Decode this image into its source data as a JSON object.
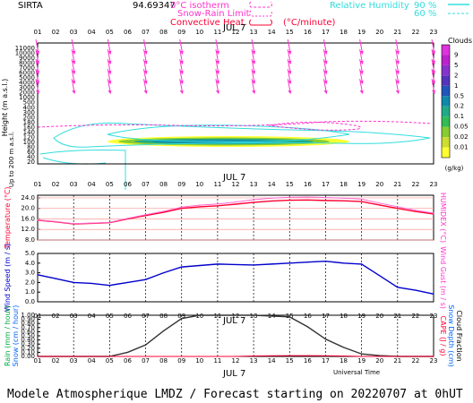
{
  "header": {
    "station": "SIRTA",
    "coords": "94.69347",
    "legend_zero": "0°C isotherm",
    "legend_snow": "Snow-Rain Limit",
    "legend_conv": "Convective Heat.",
    "legend_conv_unit": "(°C/minute)",
    "rh_label": "Relative Humidity",
    "rh_90": "90 %",
    "rh_60": "60 %",
    "colors": {
      "magenta": "#ff33cc",
      "cyan": "#33dddd",
      "red": "#ff0033"
    }
  },
  "date_label": "JUL  7",
  "utc_label": "Universal Time",
  "footer": "Modele Atmospherique LMDZ / Forecast starting on 20220707 at 0hUT",
  "chart_data": [
    {
      "type": "heatmap",
      "id": "vertical-profile",
      "x": [
        "01",
        "02",
        "03",
        "04",
        "05",
        "06",
        "07",
        "08",
        "09",
        "10",
        "11",
        "12",
        "13",
        "14",
        "15",
        "16",
        "17",
        "18",
        "19",
        "20",
        "21",
        "22",
        "23"
      ],
      "ylabel": "Height  (m a.s.l.)",
      "ylabel2": "Up to 200 m a.s.l.",
      "yticks": [
        "11000",
        "10000",
        "9000",
        "8000",
        "7000",
        "6000",
        "5000",
        "4000",
        "3000",
        "2000",
        "1000",
        "500",
        "400",
        "300",
        "200",
        "180",
        "160",
        "140",
        "120",
        "100",
        "80",
        "60",
        "40",
        "20"
      ],
      "colorbar": {
        "title": "Clouds",
        "unit": "(g/kg)",
        "ticks": [
          "0.01",
          "0.02",
          "0.05",
          "0.1",
          "0.2",
          "0.5",
          "1",
          "2",
          "5",
          "9"
        ],
        "colors": [
          "#ffff33",
          "#ccdd33",
          "#88cc33",
          "#33bb55",
          "#22aa88",
          "#1188aa",
          "#2255bb",
          "#5533bb",
          "#8833cc",
          "#bb22cc",
          "#dd33dd"
        ]
      },
      "cloud_layer": {
        "x_start": "05",
        "x_end": "18",
        "height_m": [
          1200,
          2100
        ],
        "max_gkg": 0.1
      },
      "wind_arrow_hours": [
        "01",
        "03",
        "05",
        "07",
        "09",
        "11",
        "13",
        "15",
        "17",
        "19",
        "21",
        "23"
      ],
      "wind_arrow_heights_m": [
        11000,
        9000,
        7000,
        5000,
        3000
      ]
    },
    {
      "type": "line",
      "id": "temperature",
      "x": [
        "01",
        "02",
        "03",
        "04",
        "05",
        "06",
        "07",
        "08",
        "09",
        "10",
        "11",
        "12",
        "13",
        "14",
        "15",
        "16",
        "17",
        "18",
        "19",
        "20",
        "21",
        "22",
        "23"
      ],
      "ylabel": "Temperature (°C)",
      "ylabel2": "HUMIDEX (°C)",
      "yticks": [
        "8.0",
        "12.0",
        "16.0",
        "20.0",
        "24.0"
      ],
      "ylim": [
        8,
        25
      ],
      "series": [
        {
          "name": "Temperature",
          "color": "#ff0033",
          "values": [
            15.5,
            14.9,
            14.1,
            14.3,
            14.6,
            16.0,
            17.3,
            18.5,
            20.0,
            20.6,
            21.0,
            21.6,
            22.3,
            22.8,
            23.1,
            23.2,
            23.0,
            22.9,
            22.6,
            21.3,
            20.0,
            18.8,
            17.9
          ]
        },
        {
          "name": "HUMIDEX",
          "color": "#ff66cc",
          "values": [
            15.6,
            15.0,
            14.2,
            14.4,
            14.7,
            16.2,
            17.6,
            18.9,
            20.5,
            21.2,
            21.7,
            22.4,
            23.3,
            23.9,
            24.2,
            24.3,
            24.1,
            23.9,
            23.5,
            22.0,
            20.6,
            19.3,
            18.2
          ]
        }
      ]
    },
    {
      "type": "line",
      "id": "wind-speed",
      "x": [
        "01",
        "02",
        "03",
        "04",
        "05",
        "06",
        "07",
        "08",
        "09",
        "10",
        "11",
        "12",
        "13",
        "14",
        "15",
        "16",
        "17",
        "18",
        "19",
        "20",
        "21",
        "22",
        "23"
      ],
      "ylabel": "Wind Speed (m / s)",
      "ylabel2": "Wind Gust (m / s)",
      "yticks": [
        "0.0",
        "1.0",
        "2.0",
        "3.0",
        "4.0",
        "5.0"
      ],
      "ylim": [
        0,
        5
      ],
      "series": [
        {
          "name": "Wind Speed",
          "color": "#0000cc",
          "values": [
            2.8,
            2.4,
            2.0,
            1.9,
            1.7,
            2.0,
            2.3,
            3.0,
            3.6,
            3.75,
            3.9,
            3.85,
            3.8,
            3.9,
            4.0,
            4.1,
            4.2,
            4.0,
            3.9,
            2.7,
            1.5,
            1.2,
            0.8
          ]
        }
      ]
    },
    {
      "type": "line",
      "id": "precipitation",
      "x": [
        "01",
        "02",
        "03",
        "04",
        "05",
        "06",
        "07",
        "08",
        "09",
        "10",
        "11",
        "12",
        "13",
        "14",
        "15",
        "16",
        "17",
        "18",
        "19",
        "20",
        "21",
        "22",
        "23"
      ],
      "ylabel": "Rain (mm / hour)",
      "ylabel_b": "Snow (cm / hour)",
      "ylabel2": "CAPE (J / g)",
      "ylabel2_b": "Snow Depth (cm)",
      "ylabel2_c": "Cloud Fraction",
      "yticks": [
        "0.00",
        "0.10",
        "0.20",
        "0.30",
        "0.40",
        "0.50",
        "0.60",
        "0.70",
        "0.80",
        "0.90",
        "1.00"
      ],
      "ylim": [
        0,
        1
      ],
      "series": [
        {
          "name": "Cloud Fraction",
          "color": "#333333",
          "values": [
            0,
            0,
            0,
            0,
            0,
            0.1,
            0.28,
            0.62,
            0.92,
            1.0,
            1.0,
            1.0,
            1.0,
            0.98,
            0.96,
            0.72,
            0.42,
            0.22,
            0.06,
            0.02,
            0,
            0,
            0
          ]
        },
        {
          "name": "CAPE",
          "color": "#ff0033",
          "values": [
            0,
            0,
            0,
            0,
            0,
            0,
            0,
            0,
            0,
            0,
            0,
            0,
            0.01,
            0.015,
            0.02,
            0.02,
            0.015,
            0.01,
            0,
            0,
            0,
            0,
            0
          ]
        }
      ]
    }
  ]
}
